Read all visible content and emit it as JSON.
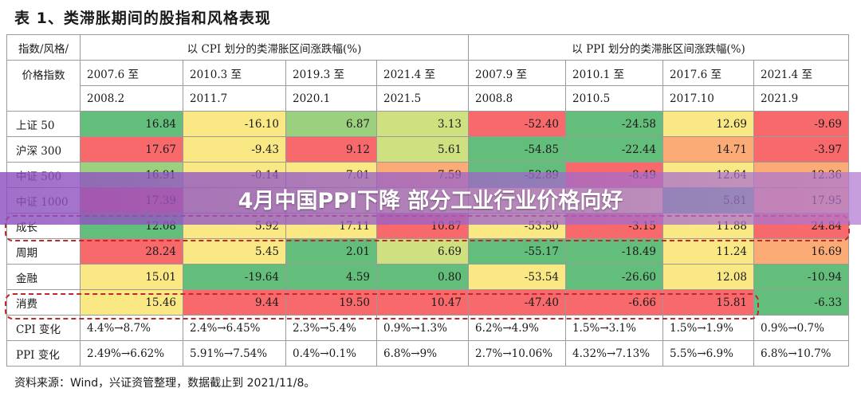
{
  "title": "表 1、类滞胀期间的股指和风格表现",
  "header": {
    "corner_top": "指数/风格/",
    "corner_bottom": "价格指数",
    "cpi_group": "以 CPI 划分的类滞胀区间涨跌幅(%)",
    "ppi_group": "以 PPI 划分的类滞胀区间涨跌幅(%)",
    "periods": [
      {
        "start": "2007.6 至",
        "end": "2008.2"
      },
      {
        "start": "2010.3 至",
        "end": "2011.7"
      },
      {
        "start": "2019.3 至",
        "end": "2020.1"
      },
      {
        "start": "2021.4 至",
        "end": "2021.5"
      },
      {
        "start": "2007.9 至",
        "end": "2008.8"
      },
      {
        "start": "2010.1 至",
        "end": "2010.5"
      },
      {
        "start": "2017.6 至",
        "end": "2017.10"
      },
      {
        "start": "2021.4 至",
        "end": "2021.9"
      }
    ]
  },
  "rows": [
    {
      "label": "上证 50",
      "values": [
        "16.84",
        "-16.10",
        "6.87",
        "3.13",
        "-52.40",
        "-24.58",
        "12.69",
        "-9.69"
      ]
    },
    {
      "label": "沪深 300",
      "values": [
        "17.67",
        "-9.43",
        "9.12",
        "5.61",
        "-54.85",
        "-22.44",
        "14.71",
        "-3.97"
      ]
    },
    {
      "label": "中证 500",
      "values": [
        "16.91",
        "-0.14",
        "7.01",
        "7.59",
        "-52.89",
        "-8.49",
        "12.64",
        "12.36"
      ]
    },
    {
      "label": "中证 1000",
      "values": [
        "17.39",
        "",
        "",
        "",
        "",
        "",
        "5.81",
        "17.95"
      ]
    },
    {
      "label": "成长",
      "values": [
        "12.08",
        "5.92",
        "17.11",
        "10.87",
        "-53.50",
        "-3.15",
        "11.88",
        "24.84"
      ]
    },
    {
      "label": "周期",
      "values": [
        "28.24",
        "5.45",
        "2.01",
        "6.69",
        "-55.17",
        "-18.49",
        "11.24",
        "16.69"
      ]
    },
    {
      "label": "金融",
      "values": [
        "15.01",
        "-19.64",
        "4.59",
        "0.80",
        "-53.54",
        "-26.60",
        "12.08",
        "-10.94"
      ]
    },
    {
      "label": "消费",
      "values": [
        "15.46",
        "9.44",
        "19.50",
        "10.47",
        "-47.40",
        "-6.66",
        "15.81",
        "-6.33"
      ]
    },
    {
      "label": "CPI 变化",
      "values": [
        "4.4%→8.7%",
        "2.4%→6.45%",
        "2.3%→5.4%",
        "0.9%→1.3%",
        "6.2%→4.9%",
        "1.5%→3.1%",
        "1.5%→1.9%",
        "0.9%→0.7%"
      ]
    },
    {
      "label": "PPI 变化",
      "values": [
        "2.49%→6.62%",
        "5.91%→7.54%",
        "0.4%→0.1%",
        "6.8%→9%",
        "2.7%→10.06%",
        "4.32%→7.13%",
        "5.5%→6.9%",
        "6.8%→10.7%"
      ]
    }
  ],
  "cell_colors": [
    [
      "#63be7b",
      "#f9e884",
      "#9bd07e",
      "#cfe080",
      "#f8696b",
      "#63be7b",
      "#f9e884",
      "#f8696b"
    ],
    [
      "#f8696b",
      "#f9e884",
      "#f8696b",
      "#cfe080",
      "#63be7b",
      "#63be7b",
      "#fbac76",
      "#f8696b"
    ],
    [
      "#9bd07e",
      "#f9e884",
      "#f9e884",
      "#fbac76",
      "#63be7b",
      "#f8696b",
      "#f9e884",
      "#fbac76"
    ],
    [
      "#f8696b",
      "#f9e884",
      "#f9e884",
      "#f9e884",
      "#f9e884",
      "#f9e884",
      "#63be7b",
      "#fbac76"
    ],
    [
      "#63be7b",
      "#f9e884",
      "#f9e884",
      "#f8696b",
      "#f9e884",
      "#f8696b",
      "#f9e884",
      "#f8696b"
    ],
    [
      "#f8696b",
      "#f9e884",
      "#63be7b",
      "#cfe080",
      "#63be7b",
      "#63be7b",
      "#f9e884",
      "#fbac76"
    ],
    [
      "#f9e884",
      "#63be7b",
      "#63be7b",
      "#63be7b",
      "#f9e884",
      "#63be7b",
      "#f9e884",
      "#63be7b"
    ],
    [
      "#f9e884",
      "#f8696b",
      "#f8696b",
      "#f8696b",
      "#f8696b",
      "#f8696b",
      "#f8696b",
      "#63be7b"
    ]
  ],
  "banner_text": "4月中国PPI下降 部分工业行业价格向好",
  "footnote": "资料来源：Wind，兴证资管整理，数据截止到 2021/11/8。"
}
